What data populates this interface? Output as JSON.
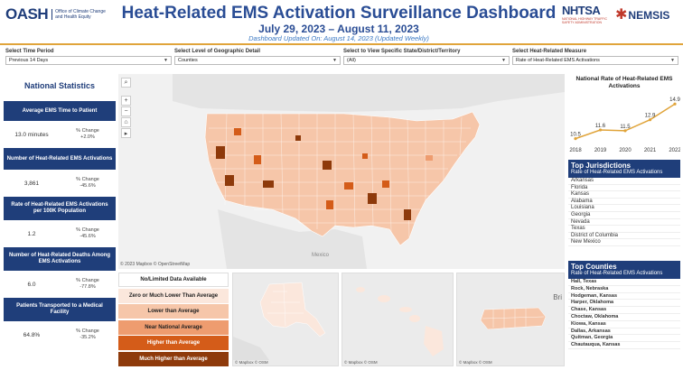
{
  "header": {
    "oash_logo": "OASH",
    "oash_sub": "Office of Climate Change and Health Equity",
    "title": "Heat-Related EMS Activation Surveillance Dashboard",
    "dates": "July 29, 2023 – August 11, 2023",
    "updated": "Dashboard Updated On: August 14, 2023 (Updated Weekly)",
    "nhtsa": "NHTSA",
    "nhtsa_sub": "NATIONAL HIGHWAY TRAFFIC SAFETY ADMINISTRATION",
    "nemsis": "NEMSIS",
    "nemsis_star": "✱"
  },
  "filters": [
    {
      "label": "Select Time Period",
      "value": "Previous 14 Days"
    },
    {
      "label": "Select Level of Geographic Detail",
      "value": "Counties"
    },
    {
      "label": "Select to View Specific State/District/Territory",
      "value": "(All)"
    },
    {
      "label": "Select Heat-Related Measure",
      "value": "Rate of Heat-Related EMS Activations"
    }
  ],
  "national": {
    "title": "National Statistics",
    "stats": [
      {
        "header": "Average EMS Time to Patient",
        "value": "13.0 minutes",
        "change_label": "% Change",
        "change": "+2.0%"
      },
      {
        "header": "Number of Heat-Related EMS Activations",
        "value": "3,861",
        "change_label": "% Change",
        "change": "-45.6%"
      },
      {
        "header": "Rate of Heat-Related EMS Activations per 100K Population",
        "value": "1.2",
        "change_label": "% Change",
        "change": "-45.6%"
      },
      {
        "header": "Number of Heat-Related Deaths Among EMS Activations",
        "value": "6.0",
        "change_label": "% Change",
        "change": "-77.8%"
      },
      {
        "header": "Patients Transported to a Medical Facility",
        "value": "64.8%",
        "change_label": "% Change",
        "change": "-35.2%"
      }
    ]
  },
  "map": {
    "credit": "© 2023 Mapbox  © OpenStreetMap",
    "mexico_label": "Mexico",
    "tools": [
      "search-icon",
      "zoom-in-icon",
      "zoom-out-icon",
      "home-icon",
      "play-icon"
    ],
    "inset_credit": "© Mapbox  © OSM",
    "bri_label": "Bri"
  },
  "legend": [
    {
      "label": "No/Limited Data Available",
      "color": "#ffffff",
      "text": "#222"
    },
    {
      "label": "Zero or Much Lower Than Average",
      "color": "#fbe7dc",
      "text": "#222"
    },
    {
      "label": "Lower than Average",
      "color": "#f6c6a9",
      "text": "#222"
    },
    {
      "label": "Near National Average",
      "color": "#ee9c6f",
      "text": "#222"
    },
    {
      "label": "Higher than Average",
      "color": "#d45c19",
      "text": "#fff"
    },
    {
      "label": "Much Higher than Average",
      "color": "#8e3a0b",
      "text": "#fff"
    }
  ],
  "trend": {
    "title": "National Rate of Heat-Related EMS Activations",
    "chart_data": {
      "type": "line",
      "x": [
        "2018",
        "2019",
        "2020",
        "2021",
        "2022"
      ],
      "values": [
        10.5,
        11.6,
        11.5,
        12.9,
        14.9
      ],
      "value_labels": [
        "10.5",
        "11.6",
        "11.5",
        "12.9",
        "14.9"
      ],
      "color": "#e0a43a"
    }
  },
  "jurisdictions": {
    "title": "Top Jurisdictions",
    "subtitle": "Rate of Heat-Related EMS Activations",
    "items": [
      "Arkansas",
      "Florida",
      "Kansas",
      "Alabama",
      "Louisiana",
      "Georgia",
      "Nevada",
      "Texas",
      "District of Columbia",
      "New Mexico"
    ]
  },
  "counties": {
    "title": "Top Counties",
    "subtitle": "Rate of Heat-Related EMS Activations",
    "items": [
      "Hall, Texas",
      "Rock, Nebraska",
      "Hodgeman, Kansas",
      "Harper, Oklahoma",
      "Chase, Kansas",
      "Choctaw, Oklahoma",
      "Kiowa, Kansas",
      "Dallas, Arkansas",
      "Quitman, Georgia",
      "Chautauqua, Kansas"
    ]
  },
  "colors": {
    "navy": "#1f3e7a",
    "accent": "#e0a43a",
    "title_blue": "#2a4d95"
  }
}
